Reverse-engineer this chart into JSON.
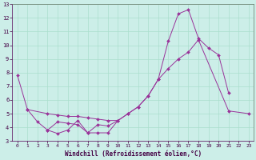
{
  "xlabel": "Windchill (Refroidissement éolien,°C)",
  "xlim": [
    -0.5,
    23.5
  ],
  "ylim": [
    3,
    13
  ],
  "xticks": [
    0,
    1,
    2,
    3,
    4,
    5,
    6,
    7,
    8,
    9,
    10,
    11,
    12,
    13,
    14,
    15,
    16,
    17,
    18,
    19,
    20,
    21,
    22,
    23
  ],
  "yticks": [
    3,
    4,
    5,
    6,
    7,
    8,
    9,
    10,
    11,
    12,
    13
  ],
  "background_color": "#cceee8",
  "grid_color": "#aaddcc",
  "line_color": "#993399",
  "line1_x": [
    0,
    1,
    2,
    3,
    4,
    5,
    6,
    7,
    8,
    9,
    10,
    11,
    12,
    13,
    14,
    15,
    16,
    17,
    18,
    19,
    20,
    21
  ],
  "line1_y": [
    7.8,
    5.3,
    4.4,
    3.8,
    4.4,
    4.3,
    4.2,
    3.6,
    4.2,
    4.1,
    4.5,
    5.0,
    5.5,
    6.3,
    7.5,
    10.3,
    12.3,
    12.6,
    10.5,
    9.8,
    9.3,
    6.5
  ],
  "line2_x": [
    1,
    3,
    4,
    5,
    6,
    7,
    8,
    9,
    10,
    11,
    12,
    13,
    14,
    15,
    16,
    17,
    18,
    21,
    23
  ],
  "line2_y": [
    5.3,
    5.0,
    4.9,
    4.8,
    4.8,
    4.7,
    4.6,
    4.5,
    4.5,
    5.0,
    5.5,
    6.3,
    7.5,
    8.3,
    9.0,
    9.5,
    10.4,
    5.2,
    5.0
  ],
  "line3_x": [
    3,
    4,
    5,
    6,
    7,
    8,
    9,
    10
  ],
  "line3_y": [
    3.8,
    3.55,
    3.8,
    4.5,
    3.6,
    3.6,
    3.6,
    4.5
  ]
}
